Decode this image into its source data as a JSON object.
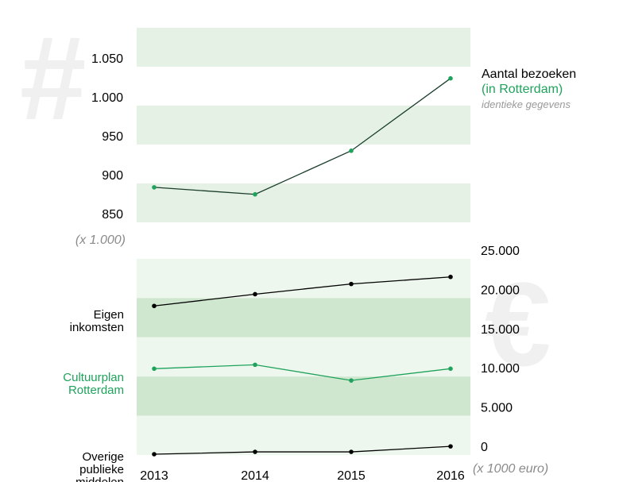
{
  "chart_data": [
    {
      "type": "line",
      "watermark": "#",
      "series": [
        {
          "name": "Aantal bezoeken",
          "color": "#1a3d2a",
          "marker_color": "#1fa35c",
          "values": [
            895,
            886,
            942,
            1035
          ]
        }
      ],
      "legend_subtitle": "(in Rotterdam)",
      "legend_note": "identieke gegevens",
      "unit_label": "(x 1.000)",
      "ylim": [
        850,
        1100
      ],
      "yticks": [
        850,
        900,
        950,
        {
          "value": 1000,
          "label": "1.000"
        },
        {
          "value": 1050,
          "label": "1.050"
        }
      ],
      "band_colors": [
        "#e4f1e4",
        "#ffffff"
      ]
    },
    {
      "type": "line",
      "watermark": "€",
      "categories": [
        "2013",
        "2014",
        "2015",
        "2016"
      ],
      "series": [
        {
          "name": "Eigen inkomsten",
          "color": "#000000",
          "values": [
            19000,
            20500,
            21800,
            22700
          ]
        },
        {
          "name": "Cultuurplan Rotterdam",
          "color": "#1fa35c",
          "values": [
            11000,
            11500,
            9500,
            11000
          ]
        },
        {
          "name": "Overige publieke middelen",
          "color": "#000000",
          "values": [
            100,
            400,
            400,
            1100
          ]
        }
      ],
      "unit_label": "(x 1000 euro)",
      "ylim": [
        0,
        25000
      ],
      "yticks": [
        0,
        {
          "value": 5000,
          "label": "5.000"
        },
        {
          "value": 10000,
          "label": "10.000"
        },
        {
          "value": 15000,
          "label": "15.000"
        },
        {
          "value": 20000,
          "label": "20.000"
        },
        {
          "value": 25000,
          "label": "25.000"
        }
      ],
      "band_colors": [
        "#cfe6cf",
        "#eef7ee"
      ]
    }
  ]
}
